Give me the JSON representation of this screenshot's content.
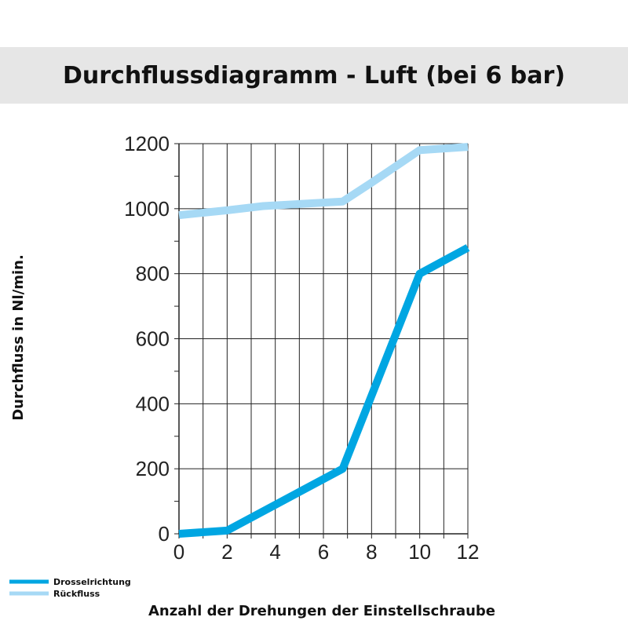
{
  "chart_data": {
    "type": "line",
    "title": "Durchflussdiagramm - Luft (bei 6 bar)",
    "xlabel": "Anzahl der Drehungen der Einstellschraube",
    "ylabel": "Durchfluss in Nl/min.",
    "xlim": [
      0,
      12
    ],
    "ylim": [
      0,
      1200
    ],
    "x_ticks": [
      "0",
      "2",
      "4",
      "6",
      "8",
      "10",
      "12"
    ],
    "y_ticks": [
      "0",
      "200",
      "400",
      "600",
      "800",
      "1000",
      "1200"
    ],
    "grid": true,
    "legend_position": "bottom-left",
    "series": [
      {
        "name": "Drosselrichtung",
        "color": "#00a6e2",
        "points": [
          [
            0,
            0
          ],
          [
            2,
            10
          ],
          [
            6.8,
            200
          ],
          [
            10,
            800
          ],
          [
            12,
            880
          ]
        ]
      },
      {
        "name": "Rückfluss",
        "color": "#a6d9f5",
        "points": [
          [
            0,
            980
          ],
          [
            2,
            995
          ],
          [
            3.5,
            1008
          ],
          [
            6.8,
            1022
          ],
          [
            8,
            1080
          ],
          [
            10,
            1180
          ],
          [
            12,
            1190
          ]
        ]
      }
    ]
  }
}
